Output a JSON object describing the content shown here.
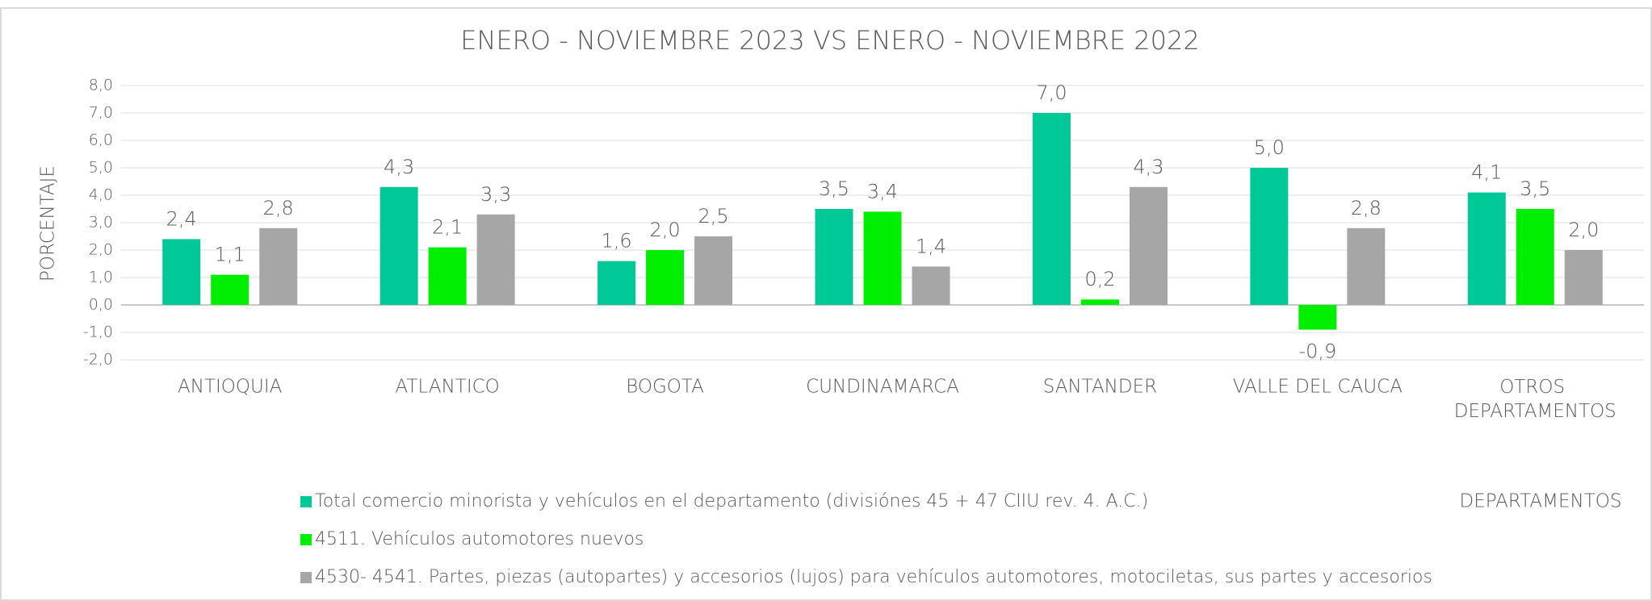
{
  "chart_data": {
    "type": "bar",
    "title": "ENERO - NOVIEMBRE 2023 VS ENERO - NOVIEMBRE 2022",
    "y_label": "PORCENTAJE",
    "x_label": "DEPARTAMENTOS",
    "categories": [
      "ANTIOQUIA",
      "ATLANTICO",
      "BOGOTA",
      "CUNDINAMARCA",
      "SANTANDER",
      "VALLE DEL CAUCA",
      "OTROS DEPARTAMENTOS"
    ],
    "series": [
      {
        "name": "Total comercio minorista y vehículos en el departamento (divisiónes 45 + 47  CIIU rev. 4. A.C.)",
        "color": "#00c896",
        "values": [
          2.4,
          4.3,
          1.6,
          3.5,
          7.0,
          5.0,
          4.1
        ],
        "value_labels": [
          "2,4",
          "4,3",
          "1,6",
          "3,5",
          "7,0",
          "5,0",
          "4,1"
        ]
      },
      {
        "name": "4511. Vehículos automotores nuevos",
        "color": "#00ee00",
        "values": [
          1.1,
          2.1,
          2.0,
          3.4,
          0.2,
          -0.9,
          3.5
        ],
        "value_labels": [
          "1,1",
          "2,1",
          "2,0",
          "3,4",
          "0,2",
          "-0,9",
          "3,5"
        ]
      },
      {
        "name": "4530- 4541. Partes, piezas (autopartes) y accesorios (lujos) para vehículos automotores, motociletas, sus partes y accesorios",
        "color": "#a6a6a6",
        "values": [
          2.8,
          3.3,
          2.5,
          1.4,
          4.3,
          2.8,
          2.0
        ],
        "value_labels": [
          "2,8",
          "3,3",
          "2,5",
          "1,4",
          "4,3",
          "2,8",
          "2,0"
        ]
      }
    ],
    "ylim": [
      -2,
      8
    ],
    "yticks": [
      {
        "value": -2,
        "label": "-2,0"
      },
      {
        "value": -1,
        "label": "-1,0"
      },
      {
        "value": 0,
        "label": "0,0"
      },
      {
        "value": 1,
        "label": "1,0"
      },
      {
        "value": 2,
        "label": "2,0"
      },
      {
        "value": 3,
        "label": "3,0"
      },
      {
        "value": 4,
        "label": "4,0"
      },
      {
        "value": 5,
        "label": "5,0"
      },
      {
        "value": 6,
        "label": "6,0"
      },
      {
        "value": 7,
        "label": "7,0"
      },
      {
        "value": 8,
        "label": "8,0"
      }
    ],
    "grid": true
  }
}
